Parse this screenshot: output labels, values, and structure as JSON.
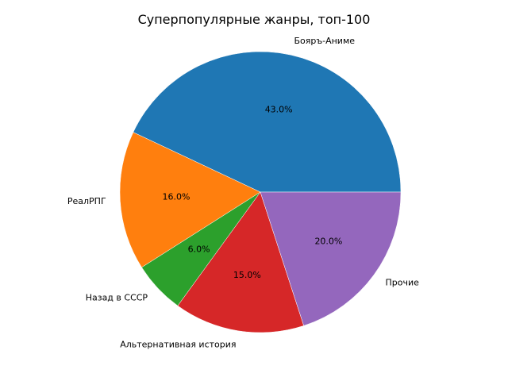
{
  "chart_data": {
    "type": "pie",
    "title": "Суперпопулярные жанры, топ-100",
    "slices": [
      {
        "label": "Бояръ-Аниме",
        "value": 43.0,
        "pct_label": "43.0%",
        "color": "#1f77b4"
      },
      {
        "label": "РеалРПГ",
        "value": 16.0,
        "pct_label": "16.0%",
        "color": "#ff7f0e"
      },
      {
        "label": "Назад в СССР",
        "value": 6.0,
        "pct_label": "6.0%",
        "color": "#2ca02c"
      },
      {
        "label": "Альтернативная история",
        "value": 15.0,
        "pct_label": "15.0%",
        "color": "#d62728"
      },
      {
        "label": "Прочие",
        "value": 20.0,
        "pct_label": "20.0%",
        "color": "#9467bd"
      }
    ],
    "start_angle": 0,
    "direction": "counterclockwise",
    "legend": "none"
  }
}
